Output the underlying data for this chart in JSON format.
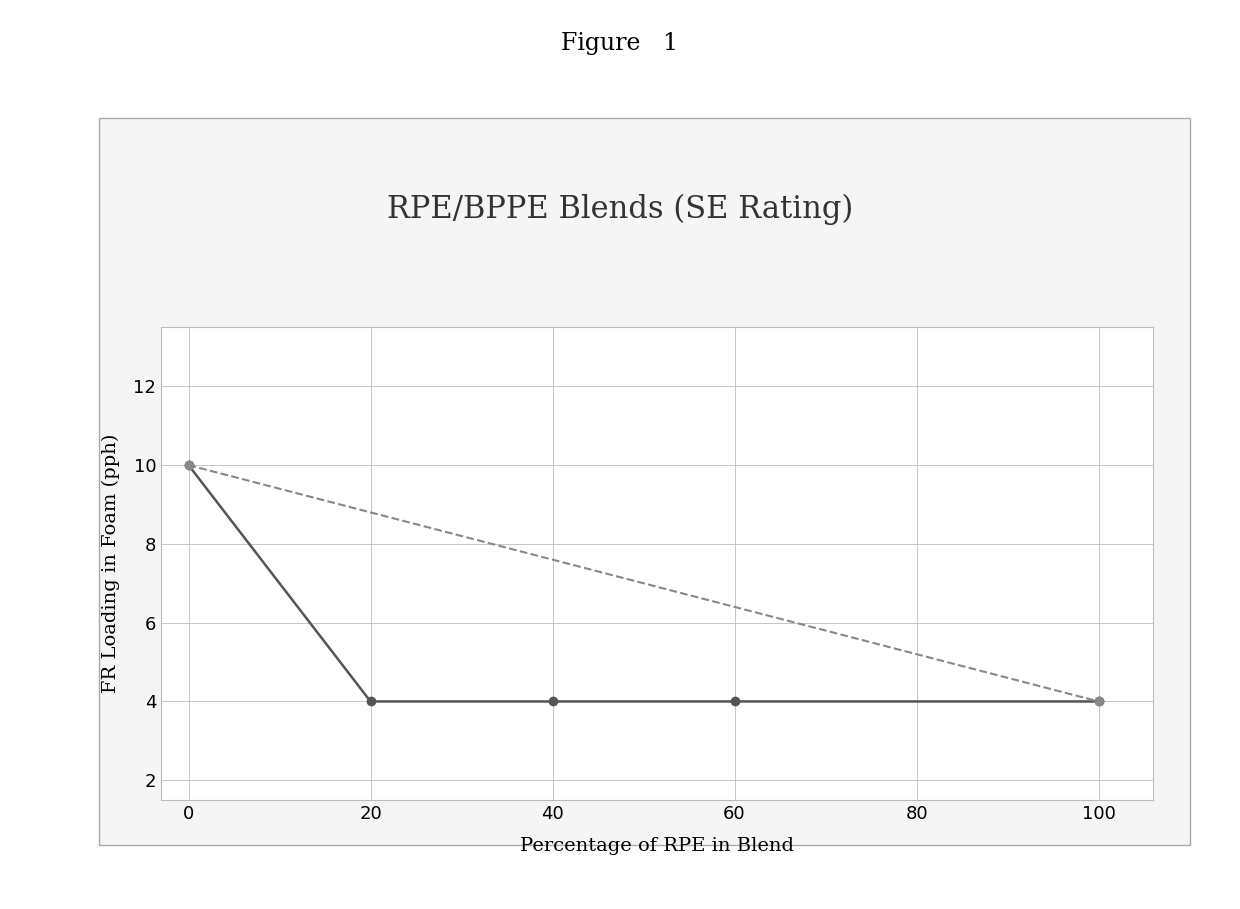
{
  "title": "RPE/BPPE Blends (SE Rating)",
  "figure_title": "Figure   1",
  "xlabel": "Percentage of RPE in Blend",
  "ylabel": "FR Loading in Foam (pph)",
  "solid_line": {
    "x": [
      0,
      20,
      40,
      60,
      100
    ],
    "y": [
      10,
      4,
      4,
      4,
      4
    ],
    "color": "#555555",
    "linestyle": "-",
    "linewidth": 1.8,
    "marker": "o",
    "markersize": 6,
    "markerfacecolor": "#555555",
    "markeredgecolor": "#555555"
  },
  "dashed_line": {
    "x": [
      0,
      100
    ],
    "y": [
      10,
      4
    ],
    "color": "#888888",
    "linestyle": "--",
    "linewidth": 1.5,
    "marker": "o",
    "markersize": 6,
    "markerfacecolor": "#888888",
    "markeredgecolor": "#888888"
  },
  "xlim": [
    -3,
    106
  ],
  "ylim": [
    1.5,
    13.5
  ],
  "xticks": [
    0,
    20,
    40,
    60,
    80,
    100
  ],
  "yticks": [
    2,
    4,
    6,
    8,
    10,
    12
  ],
  "grid_color": "#bbbbbb",
  "grid_linestyle": "-",
  "grid_linewidth": 0.6,
  "outer_bg_color": "#ffffff",
  "inner_bg_color": "#ffffff",
  "title_fontsize": 22,
  "axis_label_fontsize": 14,
  "tick_fontsize": 13,
  "figure_title_fontsize": 17
}
